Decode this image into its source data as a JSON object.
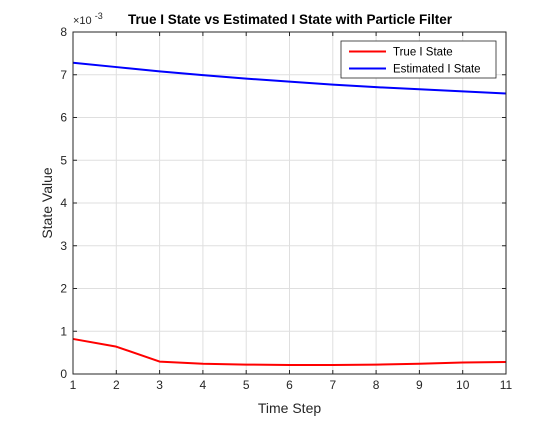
{
  "chart_data": {
    "type": "line",
    "title": "True I State vs Estimated I State with Particle Filter",
    "xlabel": "Time Step",
    "ylabel": "State Value",
    "exponent_base": "×10",
    "exponent_power": "-3",
    "xlim": [
      1,
      11
    ],
    "ylim": [
      0,
      8
    ],
    "x_ticks": [
      1,
      2,
      3,
      4,
      5,
      6,
      7,
      8,
      9,
      10,
      11
    ],
    "y_ticks": [
      0,
      1,
      2,
      3,
      4,
      5,
      6,
      7,
      8
    ],
    "y_scale_factor": 0.001,
    "grid": true,
    "legend_position": "top-right",
    "x": [
      1,
      2,
      3,
      4,
      5,
      6,
      7,
      8,
      9,
      10,
      11
    ],
    "series": [
      {
        "name": "True I State",
        "color": "#ff0000",
        "values": [
          0.82,
          0.64,
          0.29,
          0.24,
          0.22,
          0.21,
          0.21,
          0.22,
          0.24,
          0.27,
          0.28
        ]
      },
      {
        "name": "Estimated I State",
        "color": "#0000ff",
        "values": [
          7.28,
          7.18,
          7.08,
          6.99,
          6.91,
          6.84,
          6.77,
          6.71,
          6.66,
          6.61,
          6.56
        ]
      }
    ]
  }
}
